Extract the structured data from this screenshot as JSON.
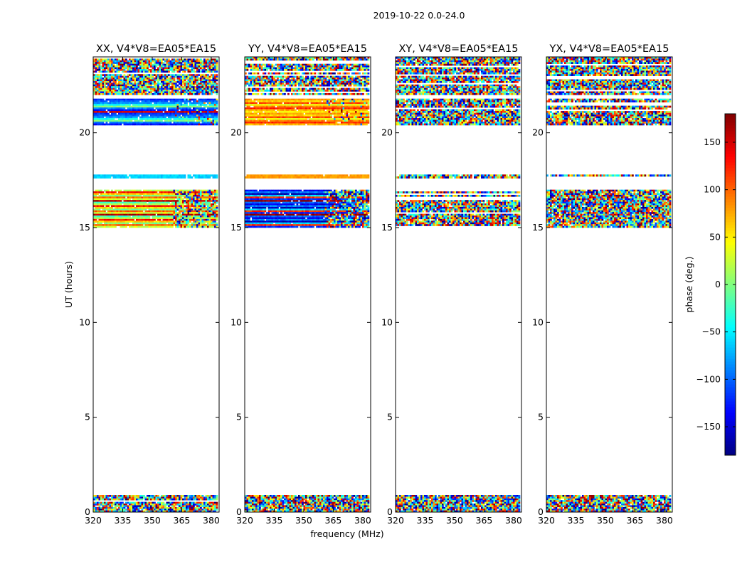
{
  "figure": {
    "suptitle": "2019-10-22 0.0-24.0",
    "xlabel": "frequency (MHz)",
    "ylabel": "UT (hours)",
    "colorbar_label": "phase (deg.)"
  },
  "chart_data": [
    {
      "type": "heatmap",
      "title": "XX, V4*V8=EA05*EA15",
      "x_ticks": [
        320,
        335,
        350,
        365,
        380
      ],
      "xlim": [
        320,
        384
      ],
      "y_ticks": [
        0,
        5,
        10,
        15,
        20
      ],
      "ylim": [
        0,
        24
      ],
      "data_bands_hours": [
        [
          0,
          0.9
        ],
        [
          15.0,
          17.0
        ],
        [
          17.6,
          17.8
        ],
        [
          20.4,
          21.8
        ],
        [
          22.0,
          24.0
        ]
      ],
      "dominant_phase_by_band_deg": {
        "0-0.9": "noisy",
        "15.0-17.0": "~0 to 150 (coherent)",
        "17.6-17.8": "~-60",
        "20.4-21.8": "~-120 to 0",
        "22.0-24.0": "noisy"
      }
    },
    {
      "type": "heatmap",
      "title": "YY, V4*V8=EA05*EA15",
      "x_ticks": [
        320,
        335,
        350,
        365,
        380
      ],
      "xlim": [
        320,
        384
      ],
      "y_ticks": [
        0,
        5,
        10,
        15,
        20
      ],
      "ylim": [
        0,
        24
      ],
      "data_bands_hours": [
        [
          0,
          0.9
        ],
        [
          15.0,
          17.0
        ],
        [
          17.6,
          17.8
        ],
        [
          20.4,
          21.8
        ],
        [
          22.0,
          24.0
        ]
      ],
      "dominant_phase_by_band_deg": {
        "0-0.9": "noisy",
        "15.0-17.0": "~-150 to -60 (coherent)",
        "17.6-17.8": "~80",
        "20.4-21.8": "~60 to 120",
        "22.0-24.0": "noisy"
      }
    },
    {
      "type": "heatmap",
      "title": "XY, V4*V8=EA05*EA15",
      "x_ticks": [
        320,
        335,
        350,
        365,
        380
      ],
      "xlim": [
        320,
        384
      ],
      "y_ticks": [
        0,
        5,
        10,
        15,
        20
      ],
      "ylim": [
        0,
        24
      ],
      "data_bands_hours": [
        [
          0,
          0.9
        ],
        [
          15.0,
          17.0
        ],
        [
          17.6,
          17.8
        ],
        [
          20.4,
          21.8
        ],
        [
          22.0,
          24.0
        ]
      ],
      "dominant_phase_by_band_deg": {
        "all": "noisy"
      }
    },
    {
      "type": "heatmap",
      "title": "YX, V4*V8=EA05*EA15",
      "x_ticks": [
        320,
        335,
        350,
        365,
        380
      ],
      "xlim": [
        320,
        384
      ],
      "y_ticks": [
        0,
        5,
        10,
        15,
        20
      ],
      "ylim": [
        0,
        24
      ],
      "data_bands_hours": [
        [
          0,
          0.9
        ],
        [
          15.0,
          17.0
        ],
        [
          17.6,
          17.8
        ],
        [
          20.4,
          21.8
        ],
        [
          22.0,
          24.0
        ]
      ],
      "dominant_phase_by_band_deg": {
        "all": "noisy"
      }
    }
  ],
  "colorbar": {
    "vmin": -180,
    "vmax": 180,
    "ticks": [
      -150,
      -100,
      -50,
      0,
      50,
      100,
      150
    ],
    "tick_labels": [
      "−150",
      "−100",
      "−50",
      "0",
      "50",
      "100",
      "150"
    ],
    "colormap": "jet"
  }
}
